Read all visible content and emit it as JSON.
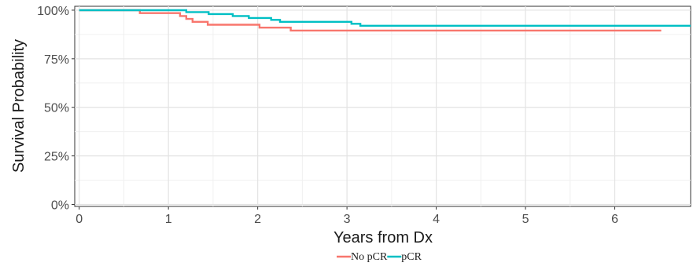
{
  "chart_data": {
    "type": "line",
    "xlabel": "Years from Dx",
    "ylabel": "Survival Probability",
    "xlim": [
      -0.05,
      6.85
    ],
    "ylim": [
      -0.01,
      1.02
    ],
    "x_ticks": [
      0,
      1,
      2,
      3,
      4,
      5,
      6
    ],
    "x_tick_labels": [
      "0",
      "1",
      "2",
      "3",
      "4",
      "5",
      "6"
    ],
    "y_ticks": [
      0,
      0.25,
      0.5,
      0.75,
      1.0
    ],
    "y_tick_labels": [
      "0%",
      "25%",
      "50%",
      "75%",
      "100%"
    ],
    "step": true,
    "grid": true,
    "legend_position": "bottom",
    "series": [
      {
        "name": "No pCR",
        "color": "#F8766D",
        "x": [
          0,
          0.68,
          1.13,
          1.2,
          1.27,
          1.44,
          2.02,
          2.37,
          6.52
        ],
        "y": [
          1.0,
          0.985,
          0.97,
          0.955,
          0.94,
          0.925,
          0.91,
          0.895,
          0.895
        ]
      },
      {
        "name": "pCR",
        "color": "#00BFC4",
        "x": [
          0,
          1.2,
          1.45,
          1.72,
          1.9,
          2.15,
          2.25,
          3.05,
          3.15,
          6.85
        ],
        "y": [
          1.0,
          0.99,
          0.98,
          0.97,
          0.96,
          0.95,
          0.94,
          0.93,
          0.92,
          0.92
        ]
      }
    ]
  }
}
